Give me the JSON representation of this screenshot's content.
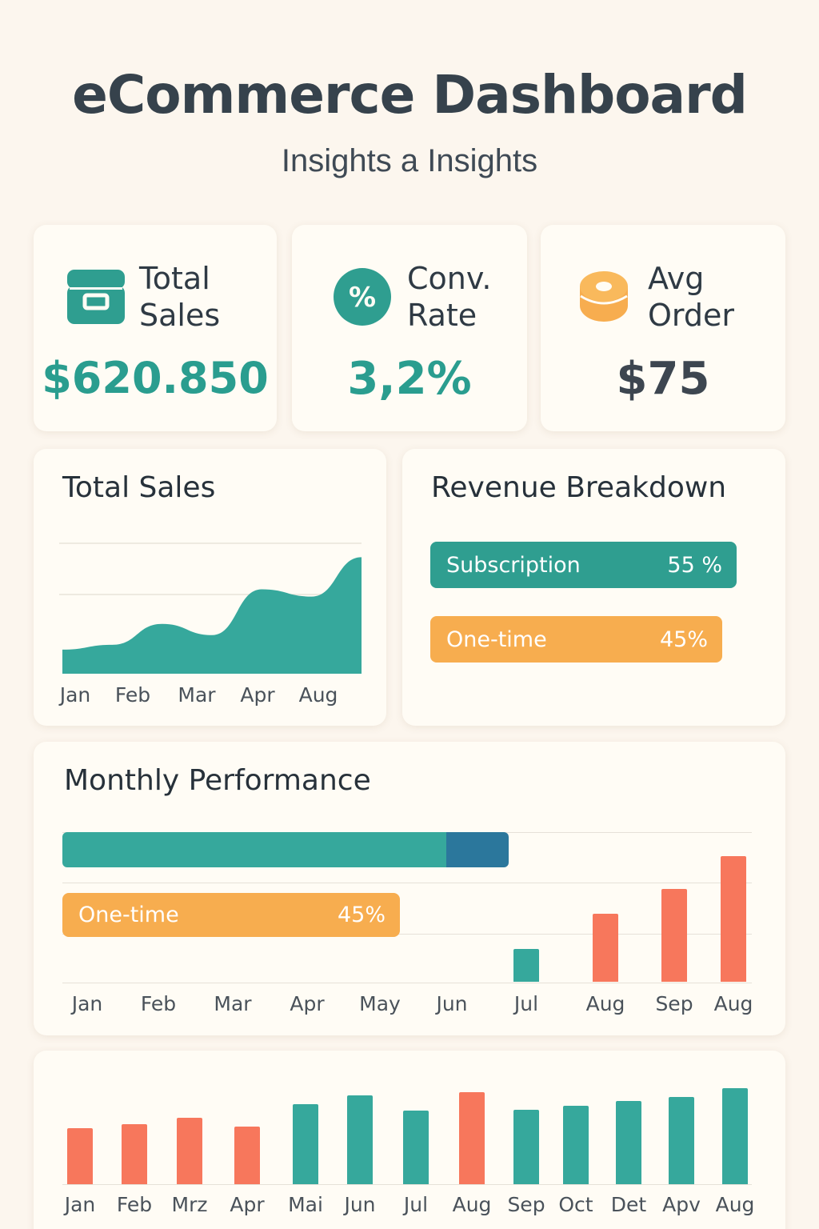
{
  "header": {
    "title": "eCommerce Dashboard",
    "subtitle": "Insights a Insights"
  },
  "colors": {
    "teal": "#36a89c",
    "orange": "#f7ad4f",
    "coral": "#f7775c",
    "navy": "#2b779c",
    "background": "#fcf6ee",
    "card": "#fffcf5"
  },
  "kpis": [
    {
      "label_line1": "Total",
      "label_line2": "Sales",
      "value": "$620.850",
      "icon": "shopping-box-icon",
      "value_color": "#2a9d8f"
    },
    {
      "label_line1": "Conv.",
      "label_line2": "Rate",
      "value": "3,2%",
      "icon": "percent-icon",
      "icon_glyph": "%",
      "value_color": "#2a9d8f"
    },
    {
      "label_line1": "Avg",
      "label_line2": "Order",
      "value": "$75",
      "icon": "coin-stack-icon",
      "value_color": "#3d4650"
    }
  ],
  "total_sales_chart": {
    "title": "Total Sales",
    "chart_data": {
      "type": "area",
      "title": "Total Sales",
      "x_tick_labels": [
        "Jan",
        "Feb",
        "Mar",
        "Apr",
        "Aug"
      ],
      "values": [
        30,
        36,
        62,
        48,
        105,
        96,
        145
      ],
      "ylim": [
        0,
        230
      ],
      "grid": true,
      "color": "#36a89c"
    }
  },
  "revenue_breakdown": {
    "title": "Revenue Breakdown",
    "items": [
      {
        "label": "Subscription",
        "value_label": "55 %",
        "share": 55,
        "color": "#2f9e90"
      },
      {
        "label": "One-time",
        "value_label": "45%",
        "share": 45,
        "color": "#f7ad4f"
      }
    ]
  },
  "monthly_performance": {
    "title": "Monthly Performance",
    "progress_bar": {
      "teal_fraction": 0.86,
      "navy_fraction": 0.14,
      "fill_fraction": 0.65
    },
    "one_time_bar": {
      "label": "One-time",
      "value_label": "45%",
      "share": 45
    },
    "chart_data": {
      "type": "bar",
      "categories": [
        "Jan",
        "Feb",
        "Mar",
        "Apr",
        "May",
        "Jun",
        "Jul",
        "Aug",
        "Sep",
        "Aug"
      ],
      "values": [
        null,
        null,
        null,
        null,
        null,
        null,
        42,
        86,
        118,
        160
      ],
      "bar_colors": [
        "",
        "",
        "",
        "",
        "",
        "",
        "#36a89c",
        "#f7775c",
        "#f7775c",
        "#f7775c"
      ],
      "ylim": [
        0,
        190
      ],
      "grid": true
    }
  },
  "bottom_chart": {
    "chart_data": {
      "type": "bar",
      "categories": [
        "Jan",
        "Feb",
        "Mrz",
        "Apr",
        "Mai",
        "Jun",
        "Jul",
        "Aug",
        "Sep",
        "Oct",
        "Det",
        "Apv",
        "Aug"
      ],
      "values": [
        70,
        75,
        83,
        72,
        100,
        111,
        92,
        115,
        93,
        98,
        104,
        109,
        120
      ],
      "bar_colors": [
        "#f7775c",
        "#f7775c",
        "#f7775c",
        "#f7775c",
        "#36a89c",
        "#36a89c",
        "#36a89c",
        "#f7775c",
        "#36a89c",
        "#36a89c",
        "#36a89c",
        "#36a89c",
        "#36a89c"
      ],
      "ylim": [
        0,
        140
      ]
    }
  }
}
